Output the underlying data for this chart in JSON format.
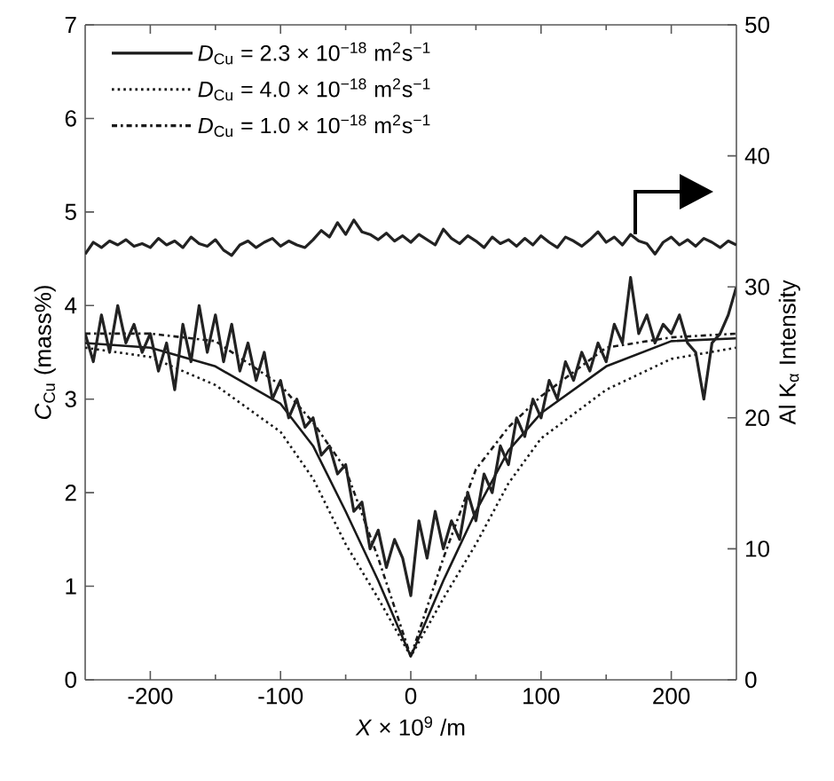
{
  "chart_data": {
    "type": "line",
    "xlabel": "*X* × 10$^{9}$ /m",
    "ylabel": "*C*$_{Cu}$ (mass%)",
    "y2label": "Al K$_{α}$ Intensity",
    "xlim": [
      -250,
      250
    ],
    "xticks": [
      -200,
      -100,
      0,
      100,
      200
    ],
    "ylim": [
      0,
      7
    ],
    "yticks": [
      0,
      1,
      2,
      3,
      4,
      5,
      6,
      7
    ],
    "y2lim": [
      0,
      50
    ],
    "y2ticks": [
      0,
      10,
      20,
      30,
      40,
      50
    ],
    "legend": "top left",
    "grid": false,
    "series": [
      {
        "name": "*D*$_{Cu}$ = 2.3 × 10$^{−18}$  m$^{2}$s$^{−1}$",
        "color": "#1a1a1a",
        "line_style": "solid",
        "x": [
          -250,
          -200,
          -150,
          -100,
          -75,
          -50,
          -25,
          0,
          25,
          50,
          75,
          100,
          150,
          200,
          250
        ],
        "values": [
          3.6,
          3.55,
          3.35,
          2.95,
          2.5,
          1.8,
          1.06,
          0.25,
          1.06,
          1.8,
          2.45,
          2.85,
          3.35,
          3.62,
          3.65
        ]
      },
      {
        "name": "*D*$_{Cu}$ = 4.0 × 10$^{−18}$  m$^{2}$s$^{−1}$",
        "color": "#1a1a1a",
        "line_style": "dotted",
        "x": [
          -250,
          -200,
          -150,
          -100,
          -75,
          -50,
          -25,
          0,
          25,
          50,
          75,
          100,
          150,
          200,
          250
        ],
        "values": [
          3.55,
          3.45,
          3.15,
          2.65,
          2.15,
          1.45,
          0.87,
          0.25,
          0.87,
          1.45,
          2.1,
          2.58,
          3.1,
          3.43,
          3.55
        ]
      },
      {
        "name": "*D*$_{Cu}$ = 1.0 × 10$^{−18}$  m$^{2}$s$^{−1}$",
        "color": "#1a1a1a",
        "line_style": "dashdot",
        "x": [
          -250,
          -200,
          -150,
          -100,
          -75,
          -50,
          -25,
          0,
          25,
          50,
          75,
          100,
          150,
          200,
          250
        ],
        "values": [
          3.7,
          3.7,
          3.62,
          3.15,
          2.75,
          2.25,
          1.3,
          0.25,
          1.3,
          2.25,
          2.7,
          3.03,
          3.55,
          3.66,
          3.7
        ]
      },
      {
        "color": "#222222",
        "line_style": "solid",
        "x": [
          -250,
          -243.75,
          -237.5,
          -231.25,
          -225,
          -218.75,
          -212.5,
          -206.25,
          -200,
          -193.75,
          -187.5,
          -181.25,
          -175,
          -168.75,
          -162.5,
          -156.25,
          -150,
          -143.75,
          -137.5,
          -131.25,
          -125,
          -118.75,
          -112.5,
          -106.25,
          -100,
          -93.75,
          -87.5,
          -81.25,
          -75,
          -68.75,
          -62.5,
          -56.25,
          -50,
          -43.75,
          -37.5,
          -31.25,
          -25,
          -18.75,
          -12.5,
          -6.25,
          0,
          6.25,
          12.5,
          18.75,
          25,
          31.25,
          37.5,
          43.75,
          50,
          56.25,
          62.5,
          68.75,
          75,
          81.25,
          87.5,
          93.75,
          100,
          106.25,
          112.5,
          118.75,
          125,
          131.25,
          137.5,
          143.75,
          150,
          156.25,
          162.5,
          168.75,
          175,
          181.25,
          187.5,
          193.75,
          200,
          206.25,
          212.5,
          218.75,
          225,
          231.25,
          237.5,
          243.75,
          250
        ],
        "values": [
          3.7,
          3.4,
          3.9,
          3.5,
          4.0,
          3.6,
          3.8,
          3.5,
          3.7,
          3.3,
          3.6,
          3.1,
          3.8,
          3.4,
          4.0,
          3.5,
          3.9,
          3.4,
          3.8,
          3.3,
          3.6,
          3.2,
          3.5,
          3.0,
          3.2,
          2.8,
          3.0,
          2.7,
          2.8,
          2.4,
          2.5,
          2.2,
          2.3,
          1.8,
          1.9,
          1.4,
          1.6,
          1.2,
          1.5,
          1.3,
          0.9,
          1.7,
          1.3,
          1.8,
          1.4,
          1.7,
          1.5,
          2.0,
          1.7,
          2.2,
          2.0,
          2.5,
          2.3,
          2.8,
          2.6,
          3.0,
          2.8,
          3.2,
          3.0,
          3.4,
          3.2,
          3.5,
          3.3,
          3.6,
          3.4,
          3.8,
          3.6,
          4.3,
          3.7,
          3.9,
          3.6,
          3.8,
          3.7,
          3.9,
          3.6,
          3.5,
          3.0,
          3.6,
          3.7,
          3.9,
          4.2
        ]
      },
      {
        "color": "#222222",
        "line_style": "solid",
        "axis": "y2",
        "x": [
          -250,
          -243.75,
          -237.5,
          -231.25,
          -225,
          -218.75,
          -212.5,
          -206.25,
          -200,
          -193.75,
          -187.5,
          -181.25,
          -175,
          -168.75,
          -162.5,
          -156.25,
          -150,
          -143.75,
          -137.5,
          -131.25,
          -125,
          -118.75,
          -112.5,
          -106.25,
          -100,
          -93.75,
          -87.5,
          -81.25,
          -75,
          -68.75,
          -62.5,
          -56.25,
          -50,
          -43.75,
          -37.5,
          -31.25,
          -25,
          -18.75,
          -12.5,
          -6.25,
          0,
          6.25,
          12.5,
          18.75,
          25,
          31.25,
          37.5,
          43.75,
          50,
          56.25,
          62.5,
          68.75,
          75,
          81.25,
          87.5,
          93.75,
          100,
          106.25,
          112.5,
          118.75,
          125,
          131.25,
          137.5,
          143.75,
          150,
          156.25,
          162.5,
          168.75,
          175,
          181.25,
          187.5,
          193.75,
          200,
          206.25,
          212.5,
          218.75,
          225,
          231.25,
          237.5,
          243.75,
          250
        ],
        "values": [
          32.5,
          33.4,
          33.0,
          33.5,
          33.2,
          33.6,
          33.1,
          33.3,
          33.0,
          33.7,
          33.2,
          33.5,
          33.0,
          33.8,
          33.3,
          33.1,
          33.6,
          32.8,
          32.4,
          33.2,
          33.5,
          33.0,
          33.4,
          33.7,
          33.1,
          33.5,
          33.2,
          33.0,
          33.6,
          34.3,
          33.8,
          34.9,
          34.0,
          35.1,
          34.2,
          34.0,
          33.6,
          34.1,
          33.5,
          33.9,
          33.4,
          34.0,
          33.6,
          33.2,
          34.4,
          33.7,
          33.3,
          33.9,
          33.5,
          33.0,
          33.8,
          33.3,
          33.6,
          33.1,
          33.7,
          33.2,
          33.9,
          33.4,
          33.0,
          33.8,
          33.5,
          33.1,
          33.6,
          34.2,
          33.4,
          33.8,
          33.2,
          34.0,
          33.5,
          33.3,
          32.5,
          33.4,
          33.8,
          33.2,
          33.6,
          33.1,
          33.7,
          33.4,
          33.0,
          33.5,
          33.2
        ]
      }
    ]
  }
}
